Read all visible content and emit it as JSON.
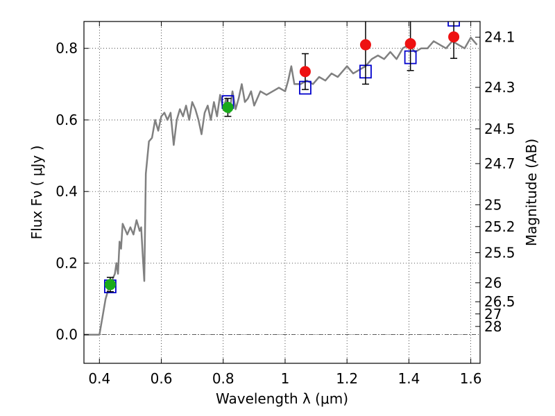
{
  "chart_data": {
    "type": "scatter",
    "title": "",
    "xlabel": "Wavelength  λ (μm)",
    "ylabel_left": "Flux  Fν  ( μJy )",
    "ylabel_right": "Magnitude (AB)",
    "xlim": [
      0.35,
      1.63
    ],
    "ylim": [
      -0.08,
      0.875
    ],
    "grid": true,
    "x_ticks": [
      0.4,
      0.6,
      0.8,
      1.0,
      1.2,
      1.4,
      1.6
    ],
    "x_tick_labels": [
      "0.4",
      "0.6",
      "0.8",
      "1",
      "1.2",
      "1.4",
      "1.6"
    ],
    "y_ticks": [
      0.0,
      0.2,
      0.4,
      0.6,
      0.8
    ],
    "y_tick_labels": [
      "0.0",
      "0.2",
      "0.4",
      "0.6",
      "0.8"
    ],
    "right_axis": {
      "ticks": [
        {
          "flux": 0.831,
          "label": "24.1"
        },
        {
          "flux": 0.691,
          "label": "24.3"
        },
        {
          "flux": 0.575,
          "label": "24.5"
        },
        {
          "flux": 0.478,
          "label": "24.7"
        },
        {
          "flux": 0.363,
          "label": "25"
        },
        {
          "flux": 0.302,
          "label": "25.2"
        },
        {
          "flux": 0.229,
          "label": "25.5"
        },
        {
          "flux": 0.145,
          "label": "26"
        },
        {
          "flux": 0.092,
          "label": "26.5"
        },
        {
          "flux": 0.058,
          "label": "27"
        },
        {
          "flux": 0.023,
          "label": "28"
        }
      ]
    },
    "series": [
      {
        "kind": "line",
        "color": "#808080",
        "points": [
          [
            0.35,
            0.0
          ],
          [
            0.4,
            0.0
          ],
          [
            0.41,
            0.05
          ],
          [
            0.42,
            0.1
          ],
          [
            0.43,
            0.13
          ],
          [
            0.44,
            0.15
          ],
          [
            0.45,
            0.17
          ],
          [
            0.455,
            0.2
          ],
          [
            0.46,
            0.17
          ],
          [
            0.465,
            0.26
          ],
          [
            0.47,
            0.24
          ],
          [
            0.475,
            0.31
          ],
          [
            0.48,
            0.3
          ],
          [
            0.49,
            0.28
          ],
          [
            0.5,
            0.3
          ],
          [
            0.51,
            0.28
          ],
          [
            0.52,
            0.32
          ],
          [
            0.53,
            0.29
          ],
          [
            0.535,
            0.3
          ],
          [
            0.54,
            0.22
          ],
          [
            0.545,
            0.15
          ],
          [
            0.55,
            0.45
          ],
          [
            0.56,
            0.54
          ],
          [
            0.57,
            0.55
          ],
          [
            0.58,
            0.6
          ],
          [
            0.59,
            0.57
          ],
          [
            0.6,
            0.61
          ],
          [
            0.61,
            0.62
          ],
          [
            0.62,
            0.6
          ],
          [
            0.63,
            0.62
          ],
          [
            0.64,
            0.53
          ],
          [
            0.65,
            0.6
          ],
          [
            0.66,
            0.63
          ],
          [
            0.67,
            0.61
          ],
          [
            0.68,
            0.64
          ],
          [
            0.69,
            0.6
          ],
          [
            0.7,
            0.65
          ],
          [
            0.71,
            0.63
          ],
          [
            0.72,
            0.6
          ],
          [
            0.73,
            0.56
          ],
          [
            0.74,
            0.62
          ],
          [
            0.75,
            0.64
          ],
          [
            0.76,
            0.6
          ],
          [
            0.77,
            0.65
          ],
          [
            0.78,
            0.61
          ],
          [
            0.79,
            0.67
          ],
          [
            0.8,
            0.63
          ],
          [
            0.81,
            0.66
          ],
          [
            0.82,
            0.62
          ],
          [
            0.83,
            0.68
          ],
          [
            0.84,
            0.63
          ],
          [
            0.85,
            0.66
          ],
          [
            0.86,
            0.7
          ],
          [
            0.87,
            0.65
          ],
          [
            0.88,
            0.66
          ],
          [
            0.89,
            0.68
          ],
          [
            0.9,
            0.64
          ],
          [
            0.92,
            0.68
          ],
          [
            0.94,
            0.67
          ],
          [
            0.96,
            0.68
          ],
          [
            0.98,
            0.69
          ],
          [
            1.0,
            0.68
          ],
          [
            1.01,
            0.71
          ],
          [
            1.02,
            0.75
          ],
          [
            1.03,
            0.7
          ],
          [
            1.05,
            0.7
          ],
          [
            1.07,
            0.71
          ],
          [
            1.09,
            0.7
          ],
          [
            1.11,
            0.72
          ],
          [
            1.13,
            0.71
          ],
          [
            1.15,
            0.73
          ],
          [
            1.17,
            0.72
          ],
          [
            1.19,
            0.74
          ],
          [
            1.2,
            0.75
          ],
          [
            1.22,
            0.73
          ],
          [
            1.24,
            0.74
          ],
          [
            1.26,
            0.75
          ],
          [
            1.28,
            0.77
          ],
          [
            1.3,
            0.78
          ],
          [
            1.32,
            0.77
          ],
          [
            1.34,
            0.79
          ],
          [
            1.36,
            0.77
          ],
          [
            1.38,
            0.8
          ],
          [
            1.4,
            0.81
          ],
          [
            1.42,
            0.79
          ],
          [
            1.44,
            0.8
          ],
          [
            1.46,
            0.8
          ],
          [
            1.48,
            0.82
          ],
          [
            1.5,
            0.81
          ],
          [
            1.52,
            0.8
          ],
          [
            1.54,
            0.82
          ],
          [
            1.56,
            0.81
          ],
          [
            1.58,
            0.8
          ],
          [
            1.6,
            0.83
          ],
          [
            1.62,
            0.81
          ]
        ]
      },
      {
        "kind": "points",
        "marker": "open-square",
        "color": "#0000cc",
        "points": [
          [
            0.435,
            0.135
          ],
          [
            0.815,
            0.65
          ],
          [
            1.065,
            0.69
          ],
          [
            1.26,
            0.735
          ],
          [
            1.405,
            0.775
          ],
          [
            1.545,
            0.88
          ]
        ]
      },
      {
        "kind": "points",
        "marker": "filled-circle",
        "color": "#1aaa1a",
        "points": [
          {
            "x": 0.435,
            "y": 0.14,
            "err": 0.02
          },
          {
            "x": 0.815,
            "y": 0.635,
            "err": 0.025
          }
        ]
      },
      {
        "kind": "points",
        "marker": "filled-circle",
        "color": "#ee1111",
        "points": [
          {
            "x": 1.065,
            "y": 0.735,
            "err": 0.05
          },
          {
            "x": 1.26,
            "y": 0.81,
            "err": 0.11
          },
          {
            "x": 1.405,
            "y": 0.813,
            "err": 0.075
          },
          {
            "x": 1.545,
            "y": 0.832,
            "err": 0.06
          }
        ]
      }
    ]
  }
}
